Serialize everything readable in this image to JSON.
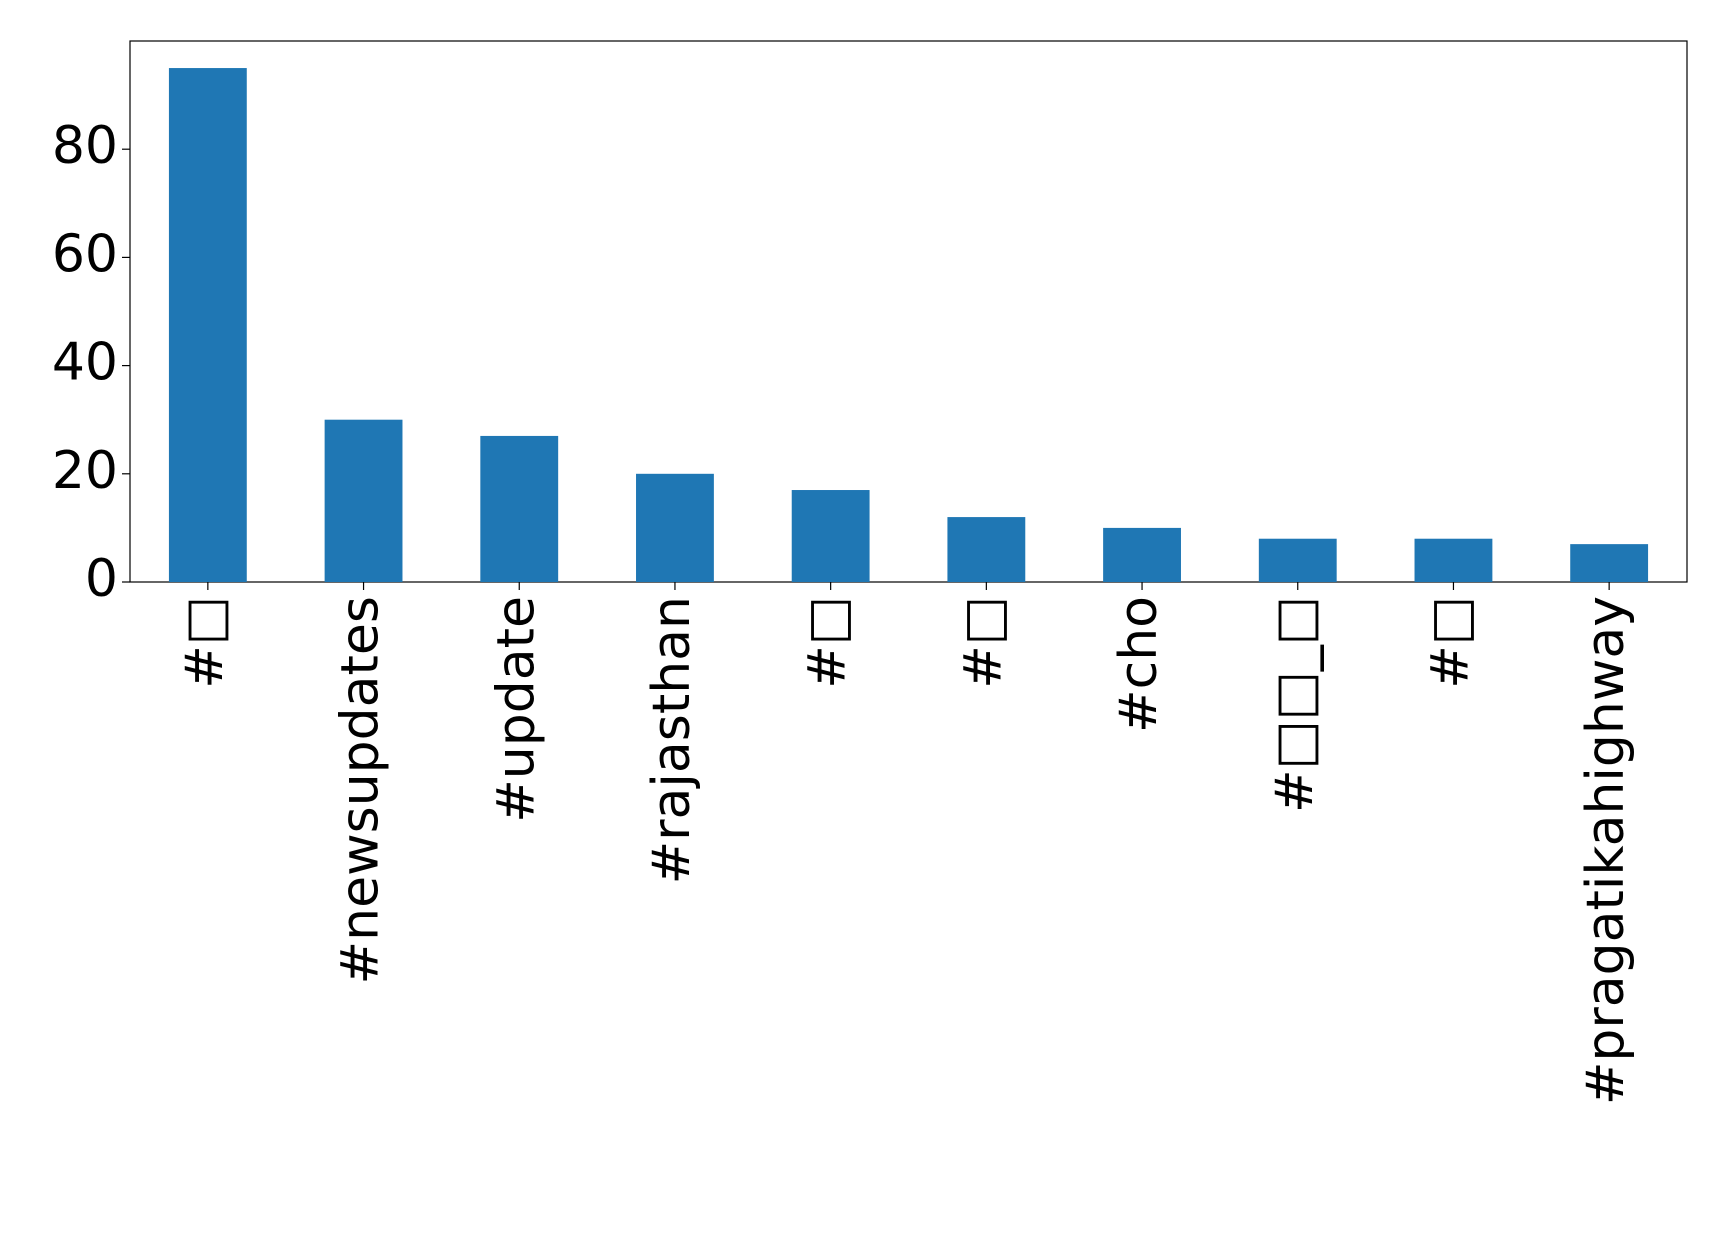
{
  "chart_data": {
    "type": "bar",
    "categories": [
      "#□",
      "#newsupdates",
      "#update",
      "#rajasthan",
      "#□",
      "#□",
      "#cho",
      "#□□_□",
      "#□",
      "#pragatikahighway"
    ],
    "values": [
      95,
      30,
      27,
      20,
      17,
      12,
      10,
      8,
      8,
      7
    ],
    "color": "#1f77b4",
    "ylim": [
      0,
      100
    ],
    "yticks": [
      0,
      20,
      40,
      60,
      80
    ],
    "grid": false
  }
}
